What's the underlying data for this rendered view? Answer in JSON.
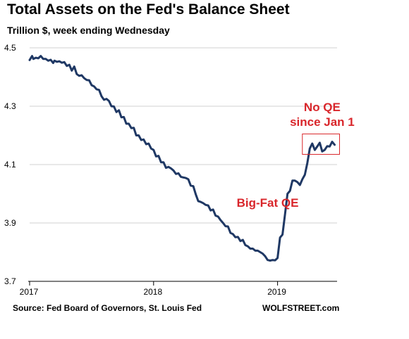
{
  "header": {
    "title": "Total Assets on the Fed's Balance Sheet",
    "subtitle": "Trillion $, week ending Wednesday"
  },
  "footer": {
    "source": "Source: Fed Board of Governors, St. Louis Fed",
    "brand": "WOLFSTREET.com"
  },
  "colors": {
    "line": "#1f3864",
    "annotation": "#d9262b",
    "grid": "#d0d0d0"
  },
  "chart_data": {
    "type": "line",
    "title": "Total Assets on the Fed's Balance Sheet",
    "ylabel": "",
    "xlabel": "",
    "xlim": [
      2017.0,
      2019.48
    ],
    "ylim": [
      3.7,
      4.5
    ],
    "y_ticks": [
      {
        "value": 4.5,
        "label": "4.5"
      },
      {
        "value": 4.3,
        "label": "4.3"
      },
      {
        "value": 4.1,
        "label": "4.1"
      },
      {
        "value": 3.9,
        "label": "3.9"
      },
      {
        "value": 3.7,
        "label": "3.7"
      }
    ],
    "x_ticks": [
      {
        "value": 2017,
        "label": "2017"
      },
      {
        "value": 2018,
        "label": "2018"
      },
      {
        "value": 2019,
        "label": "2019"
      }
    ],
    "grid": "horizontal",
    "annotations": [
      {
        "text": "No QE",
        "x": 2019.36,
        "y": 4.283
      },
      {
        "text": "since Jan 1",
        "x": 2019.36,
        "y": 4.232
      },
      {
        "text": "Big-Fat QE",
        "x": 2018.92,
        "y": 3.956
      }
    ],
    "highlight_box": {
      "x0": 2019.2,
      "x1": 2019.5,
      "y0": 4.135,
      "y1": 4.205
    },
    "series": [
      {
        "name": "",
        "x": [
          2017.0,
          2017.02,
          2017.03,
          2017.05,
          2017.07,
          2017.09,
          2017.11,
          2017.13,
          2017.15,
          2017.17,
          2017.19,
          2017.2,
          2017.22,
          2017.24,
          2017.26,
          2017.28,
          2017.3,
          2017.32,
          2017.34,
          2017.36,
          2017.38,
          2017.4,
          2017.42,
          2017.44,
          2017.46,
          2017.48,
          2017.5,
          2017.52,
          2017.54,
          2017.56,
          2017.58,
          2017.6,
          2017.62,
          2017.64,
          2017.66,
          2017.68,
          2017.7,
          2017.72,
          2017.74,
          2017.76,
          2017.78,
          2017.8,
          2017.82,
          2017.84,
          2017.86,
          2017.88,
          2017.9,
          2017.92,
          2017.94,
          2017.96,
          2017.98,
          2018.0,
          2018.02,
          2018.04,
          2018.06,
          2018.08,
          2018.1,
          2018.12,
          2018.14,
          2018.16,
          2018.18,
          2018.2,
          2018.22,
          2018.24,
          2018.26,
          2018.28,
          2018.3,
          2018.32,
          2018.34,
          2018.36,
          2018.38,
          2018.4,
          2018.42,
          2018.44,
          2018.46,
          2018.48,
          2018.5,
          2018.52,
          2018.54,
          2018.56,
          2018.58,
          2018.6,
          2018.62,
          2018.64,
          2018.66,
          2018.68,
          2018.7,
          2018.72,
          2018.74,
          2018.76,
          2018.78,
          2018.8,
          2018.82,
          2018.84,
          2018.86,
          2018.88,
          2018.9,
          2018.92,
          2018.94,
          2018.96,
          2018.98,
          2019.0,
          2019.02,
          2019.04,
          2019.06,
          2019.08,
          2019.1,
          2019.12,
          2019.14,
          2019.16,
          2019.18,
          2019.2,
          2019.22,
          2019.24,
          2019.26,
          2019.28,
          2019.3,
          2019.32,
          2019.34,
          2019.36,
          2019.38,
          2019.4,
          2019.42,
          2019.44,
          2019.46
        ],
        "values": [
          4.458,
          4.472,
          4.462,
          4.466,
          4.464,
          4.472,
          4.462,
          4.462,
          4.456,
          4.459,
          4.448,
          4.456,
          4.452,
          4.454,
          4.449,
          4.451,
          4.438,
          4.442,
          4.422,
          4.436,
          4.41,
          4.404,
          4.406,
          4.396,
          4.39,
          4.389,
          4.372,
          4.368,
          4.358,
          4.356,
          4.334,
          4.322,
          4.325,
          4.318,
          4.3,
          4.299,
          4.28,
          4.286,
          4.262,
          4.263,
          4.24,
          4.24,
          4.225,
          4.226,
          4.2,
          4.2,
          4.184,
          4.186,
          4.17,
          4.172,
          4.155,
          4.15,
          4.128,
          4.13,
          4.108,
          4.108,
          4.089,
          4.092,
          4.087,
          4.08,
          4.068,
          4.07,
          4.058,
          4.056,
          4.054,
          4.05,
          4.028,
          4.026,
          3.998,
          3.975,
          3.972,
          3.968,
          3.962,
          3.96,
          3.943,
          3.946,
          3.925,
          3.922,
          3.91,
          3.9,
          3.889,
          3.888,
          3.866,
          3.862,
          3.851,
          3.852,
          3.838,
          3.842,
          3.824,
          3.82,
          3.812,
          3.812,
          3.805,
          3.805,
          3.8,
          3.795,
          3.786,
          3.773,
          3.771,
          3.773,
          3.772,
          3.78,
          3.85,
          3.86,
          3.93,
          4.0,
          4.01,
          4.045,
          4.045,
          4.04,
          4.03,
          4.05,
          4.065,
          4.105,
          4.155,
          4.172,
          4.15,
          4.162,
          4.175,
          4.145,
          4.15,
          4.163,
          4.162,
          4.178,
          4.168
        ]
      }
    ]
  }
}
